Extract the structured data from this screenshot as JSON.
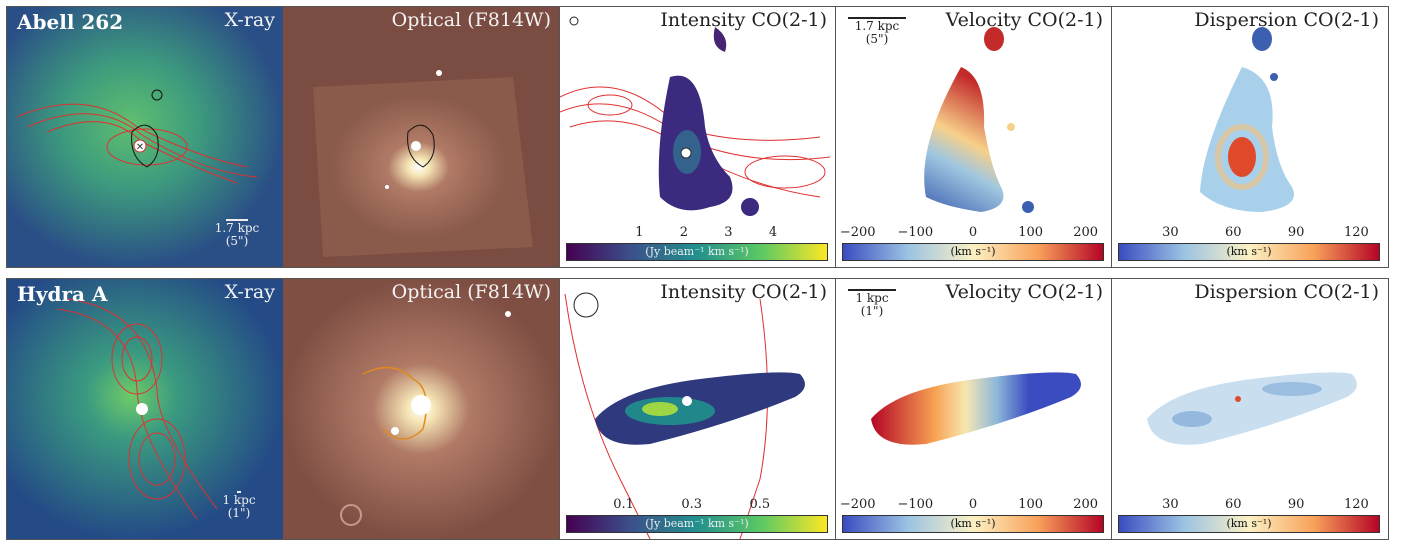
{
  "rows": [
    {
      "galaxy": "Abell 262",
      "xray_title": "X-ray",
      "optical_title": "Optical (F814W)",
      "intensity_title": "Intensity CO(2-1)",
      "velocity_title": "Velocity CO(2-1)",
      "dispersion_title": "Dispersion CO(2-1)",
      "xray_scalebar": {
        "size": "1.7 kpc",
        "angle": "(5\")"
      },
      "velocity_scalebar": {
        "size": "1.7 kpc",
        "angle": "(5\")"
      },
      "intensity_ticks": [
        "1",
        "2",
        "3",
        "4"
      ],
      "velocity_ticks": [
        "−200",
        "−100",
        "0",
        "100",
        "200"
      ],
      "dispersion_ticks": [
        "30",
        "60",
        "90",
        "120"
      ],
      "intensity_unit": "(Jy beam⁻¹ km s⁻¹)",
      "velocity_unit": "(km s⁻¹)",
      "dispersion_unit": "(km s⁻¹)"
    },
    {
      "galaxy": "Hydra A",
      "xray_title": "X-ray",
      "optical_title": "Optical (F814W)",
      "intensity_title": "Intensity CO(2-1)",
      "velocity_title": "Velocity CO(2-1)",
      "dispersion_title": "Dispersion CO(2-1)",
      "xray_scalebar": {
        "size": "1 kpc",
        "angle": "(1\")"
      },
      "velocity_scalebar": {
        "size": "1 kpc",
        "angle": "(1\")"
      },
      "intensity_ticks": [
        "0.1",
        "0.3",
        "0.5"
      ],
      "velocity_ticks": [
        "−200",
        "−100",
        "0",
        "100",
        "200"
      ],
      "dispersion_ticks": [
        "30",
        "60",
        "90",
        "120"
      ],
      "intensity_unit": "(Jy beam⁻¹ km s⁻¹)",
      "velocity_unit": "(km s⁻¹)",
      "dispersion_unit": "(km s⁻¹)"
    }
  ],
  "colors": {
    "xray_bg": "#2d5a8a",
    "xray_glow": "#4fae7c",
    "optical_bg": "#8a5a4a",
    "contour_red": "#e03030",
    "contour_black": "#111111",
    "contour_orange": "#e08a1e",
    "viridis_start": "#440154",
    "viridis_end": "#fde725",
    "rdylbu_start": "#3b4cc0",
    "rdylbu_end": "#b40426"
  }
}
